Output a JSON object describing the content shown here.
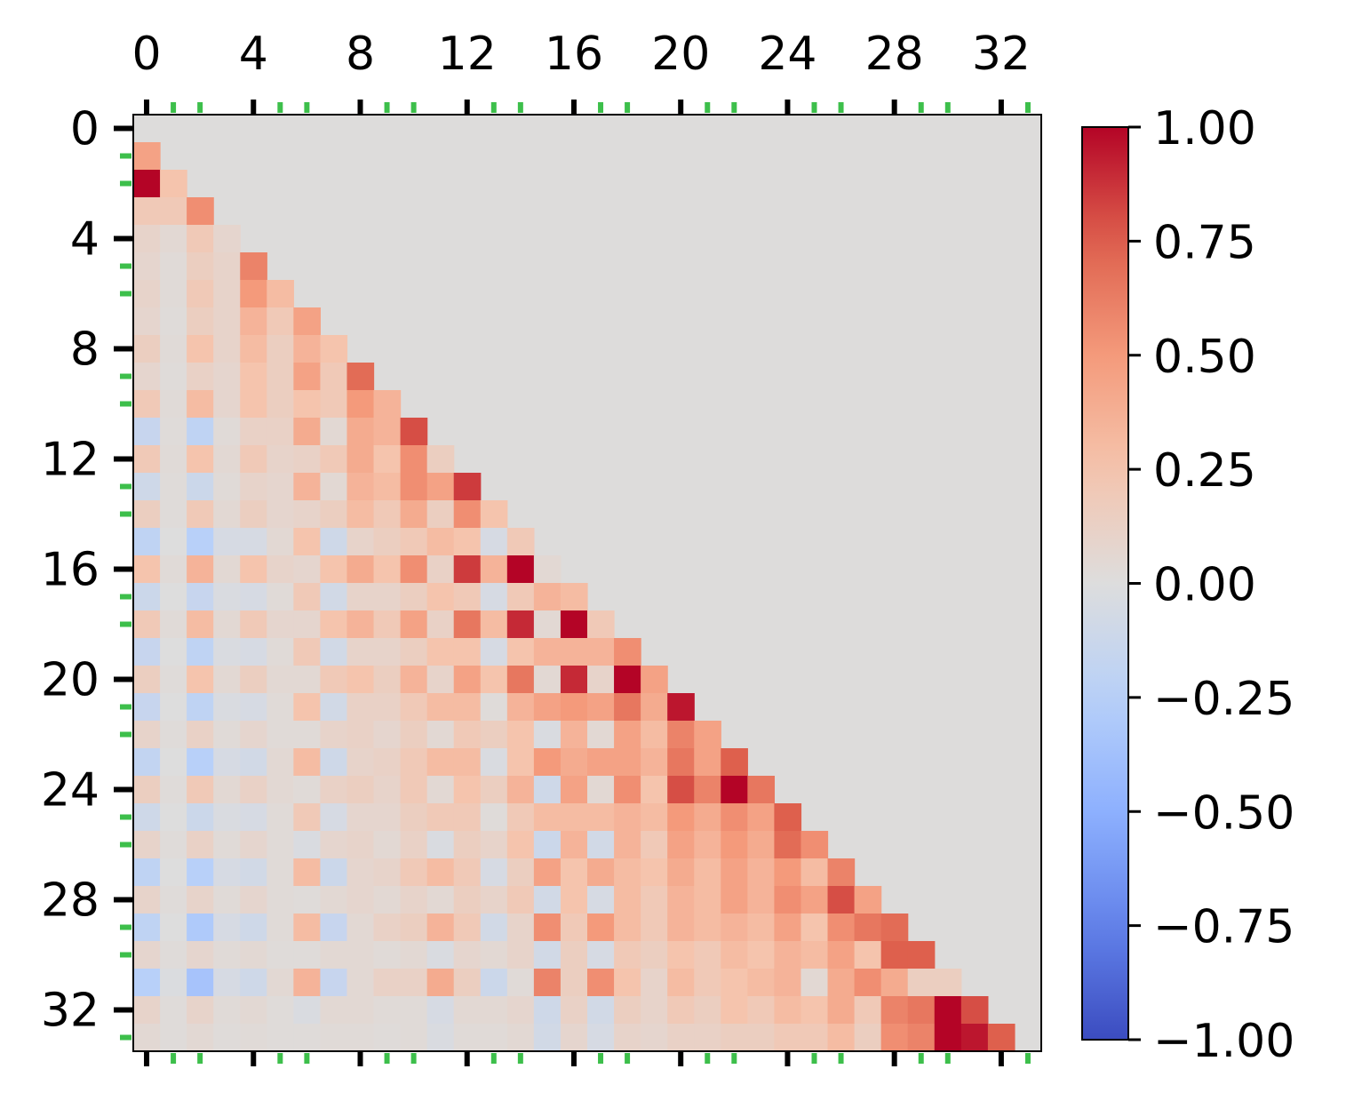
{
  "chart_data": {
    "type": "heatmap",
    "title": "",
    "xlabel": "",
    "ylabel": "",
    "rows": 34,
    "cols": 34,
    "mask": "strict-lower-triangle-shown",
    "x_ticks": [
      "0",
      "4",
      "8",
      "12",
      "16",
      "20",
      "24",
      "28",
      "32"
    ],
    "y_ticks": [
      "0",
      "4",
      "8",
      "12",
      "16",
      "20",
      "24",
      "28",
      "32"
    ],
    "minor_tick_positions": [
      1,
      2,
      5,
      6,
      9,
      10,
      13,
      14,
      17,
      18,
      21,
      22,
      25,
      26,
      29,
      30,
      33
    ],
    "colorbar": {
      "min": -1.0,
      "max": 1.0,
      "ticks": [
        "1.00",
        "0.75",
        "0.50",
        "0.25",
        "0.00",
        "−0.25",
        "−0.50",
        "−0.75",
        "−1.00"
      ],
      "colormap": "coolwarm"
    },
    "background_color": "#dddcdb",
    "major_tick_color": "#000000",
    "minor_tick_color": "#3dbf4b",
    "values": [
      [],
      [
        0.45
      ],
      [
        1.0,
        0.25
      ],
      [
        0.2,
        0.2,
        0.55
      ],
      [
        0.1,
        0.05,
        0.2,
        0.08
      ],
      [
        0.08,
        0.03,
        0.15,
        0.1,
        0.6
      ],
      [
        0.1,
        0.03,
        0.2,
        0.1,
        0.5,
        0.3
      ],
      [
        0.08,
        0.02,
        0.15,
        0.1,
        0.35,
        0.2,
        0.45
      ],
      [
        0.15,
        0.03,
        0.25,
        0.1,
        0.3,
        0.15,
        0.35,
        0.25
      ],
      [
        0.08,
        0.02,
        0.12,
        0.08,
        0.25,
        0.15,
        0.45,
        0.2,
        0.7
      ],
      [
        0.2,
        0.03,
        0.3,
        0.08,
        0.25,
        0.15,
        0.25,
        0.2,
        0.5,
        0.35
      ],
      [
        -0.15,
        0.02,
        -0.2,
        0.03,
        0.12,
        0.12,
        0.4,
        0.05,
        0.4,
        0.35,
        0.8
      ],
      [
        0.2,
        0.03,
        0.25,
        0.05,
        0.2,
        0.1,
        0.12,
        0.2,
        0.4,
        0.25,
        0.55,
        0.15
      ],
      [
        -0.1,
        0.02,
        -0.12,
        0.03,
        0.1,
        0.08,
        0.35,
        0.05,
        0.35,
        0.3,
        0.55,
        0.45,
        0.85
      ],
      [
        0.15,
        0.02,
        0.2,
        0.05,
        0.15,
        0.08,
        0.1,
        0.15,
        0.3,
        0.2,
        0.4,
        0.15,
        0.55,
        0.25
      ],
      [
        -0.2,
        0.0,
        -0.25,
        -0.05,
        -0.05,
        0.05,
        0.25,
        -0.1,
        0.1,
        0.15,
        0.2,
        0.3,
        0.25,
        -0.05,
        0.2
      ],
      [
        0.25,
        0.03,
        0.35,
        0.05,
        0.25,
        0.1,
        0.08,
        0.25,
        0.4,
        0.25,
        0.55,
        0.12,
        0.85,
        0.35,
        1.0,
        0.05
      ],
      [
        -0.12,
        0.0,
        -0.15,
        -0.03,
        -0.05,
        0.03,
        0.2,
        -0.08,
        0.1,
        0.1,
        0.15,
        0.25,
        0.2,
        -0.05,
        0.2,
        0.35,
        0.3
      ],
      [
        0.2,
        0.03,
        0.3,
        0.05,
        0.2,
        0.08,
        0.08,
        0.25,
        0.35,
        0.2,
        0.45,
        0.12,
        0.65,
        0.3,
        0.9,
        0.05,
        1.0,
        0.2
      ],
      [
        -0.15,
        0.0,
        -0.2,
        -0.03,
        -0.05,
        0.03,
        0.2,
        -0.08,
        0.1,
        0.1,
        0.15,
        0.25,
        0.25,
        -0.05,
        0.25,
        0.35,
        0.35,
        0.35,
        0.55
      ],
      [
        0.15,
        0.02,
        0.25,
        0.05,
        0.15,
        0.05,
        0.05,
        0.2,
        0.25,
        0.15,
        0.35,
        0.1,
        0.45,
        0.25,
        0.65,
        0.05,
        0.9,
        0.1,
        1.0,
        0.45
      ],
      [
        -0.15,
        0.0,
        -0.2,
        -0.03,
        -0.05,
        0.03,
        0.25,
        -0.08,
        0.12,
        0.12,
        0.2,
        0.3,
        0.3,
        0.02,
        0.35,
        0.45,
        0.5,
        0.45,
        0.65,
        0.4,
        0.95
      ],
      [
        0.1,
        0.02,
        0.12,
        0.03,
        0.08,
        0.03,
        0.03,
        0.1,
        0.12,
        0.08,
        0.15,
        0.05,
        0.2,
        0.15,
        0.25,
        -0.03,
        0.35,
        0.05,
        0.45,
        0.3,
        0.6,
        0.45
      ],
      [
        -0.18,
        0.0,
        -0.25,
        -0.05,
        -0.08,
        0.05,
        0.3,
        -0.1,
        0.1,
        0.12,
        0.2,
        0.3,
        0.3,
        -0.03,
        0.25,
        0.5,
        0.4,
        0.45,
        0.45,
        0.35,
        0.65,
        0.45,
        0.75
      ],
      [
        0.15,
        0.02,
        0.2,
        0.05,
        0.12,
        0.05,
        0.03,
        0.12,
        0.15,
        0.1,
        0.2,
        0.05,
        0.25,
        0.15,
        0.35,
        -0.1,
        0.45,
        0.05,
        0.55,
        0.25,
        0.8,
        0.6,
        1.0,
        0.65
      ],
      [
        -0.1,
        0.0,
        -0.12,
        -0.03,
        -0.05,
        0.03,
        0.2,
        -0.05,
        0.08,
        0.08,
        0.15,
        0.2,
        0.2,
        0.02,
        0.2,
        0.3,
        0.3,
        0.3,
        0.35,
        0.3,
        0.5,
        0.4,
        0.55,
        0.45,
        0.75
      ],
      [
        0.1,
        0.02,
        0.12,
        0.03,
        0.08,
        0.03,
        -0.03,
        0.08,
        0.1,
        0.05,
        0.12,
        -0.03,
        0.15,
        0.1,
        0.25,
        -0.12,
        0.35,
        -0.08,
        0.35,
        0.2,
        0.45,
        0.35,
        0.5,
        0.4,
        0.7,
        0.55
      ],
      [
        -0.2,
        0.0,
        -0.25,
        -0.05,
        -0.08,
        0.03,
        0.3,
        -0.12,
        0.08,
        0.1,
        0.2,
        0.3,
        0.2,
        -0.05,
        0.15,
        0.45,
        0.25,
        0.4,
        0.3,
        0.25,
        0.4,
        0.3,
        0.45,
        0.35,
        0.5,
        0.3,
        0.6
      ],
      [
        0.1,
        0.02,
        0.1,
        0.03,
        0.08,
        0.03,
        0.02,
        0.05,
        0.08,
        0.05,
        0.1,
        0.05,
        0.15,
        0.1,
        0.2,
        -0.08,
        0.25,
        -0.05,
        0.3,
        0.2,
        0.35,
        0.3,
        0.45,
        0.35,
        0.55,
        0.45,
        0.8,
        0.45
      ],
      [
        -0.2,
        0.0,
        -0.3,
        -0.05,
        -0.1,
        0.03,
        0.3,
        -0.15,
        0.05,
        0.12,
        0.15,
        0.35,
        0.2,
        -0.08,
        0.1,
        0.55,
        0.2,
        0.5,
        0.3,
        0.2,
        0.35,
        0.3,
        0.35,
        0.3,
        0.45,
        0.25,
        0.55,
        0.65,
        0.7
      ],
      [
        0.08,
        0.02,
        0.08,
        0.03,
        0.05,
        0.02,
        0.02,
        0.05,
        0.05,
        0.03,
        0.05,
        -0.03,
        0.08,
        0.05,
        0.1,
        -0.08,
        0.15,
        -0.05,
        0.2,
        0.15,
        0.25,
        0.2,
        0.3,
        0.25,
        0.35,
        0.3,
        0.45,
        0.25,
        0.75,
        0.75
      ],
      [
        -0.25,
        -0.02,
        -0.35,
        -0.05,
        -0.1,
        0.05,
        0.35,
        -0.15,
        0.05,
        0.12,
        0.12,
        0.4,
        0.15,
        -0.12,
        0.03,
        0.6,
        0.15,
        0.55,
        0.25,
        0.1,
        0.3,
        0.2,
        0.25,
        0.3,
        0.35,
        0.05,
        0.4,
        0.55,
        0.4,
        0.15,
        0.15
      ],
      [
        0.1,
        0.02,
        0.1,
        0.03,
        0.05,
        0.02,
        -0.03,
        0.05,
        0.05,
        0.03,
        0.03,
        -0.05,
        0.05,
        0.05,
        0.08,
        -0.1,
        0.12,
        -0.08,
        0.15,
        0.1,
        0.2,
        0.15,
        0.25,
        0.2,
        0.3,
        0.25,
        0.4,
        0.2,
        0.6,
        0.65,
        1.0,
        0.8
      ],
      [
        0.05,
        0.02,
        0.05,
        0.02,
        0.03,
        0.02,
        0.02,
        0.03,
        0.03,
        0.02,
        0.03,
        -0.03,
        0.03,
        0.03,
        0.05,
        -0.08,
        0.08,
        -0.05,
        0.1,
        0.08,
        0.12,
        0.12,
        0.15,
        0.15,
        0.2,
        0.2,
        0.3,
        0.15,
        0.55,
        0.6,
        1.0,
        0.95,
        0.75
      ]
    ]
  }
}
